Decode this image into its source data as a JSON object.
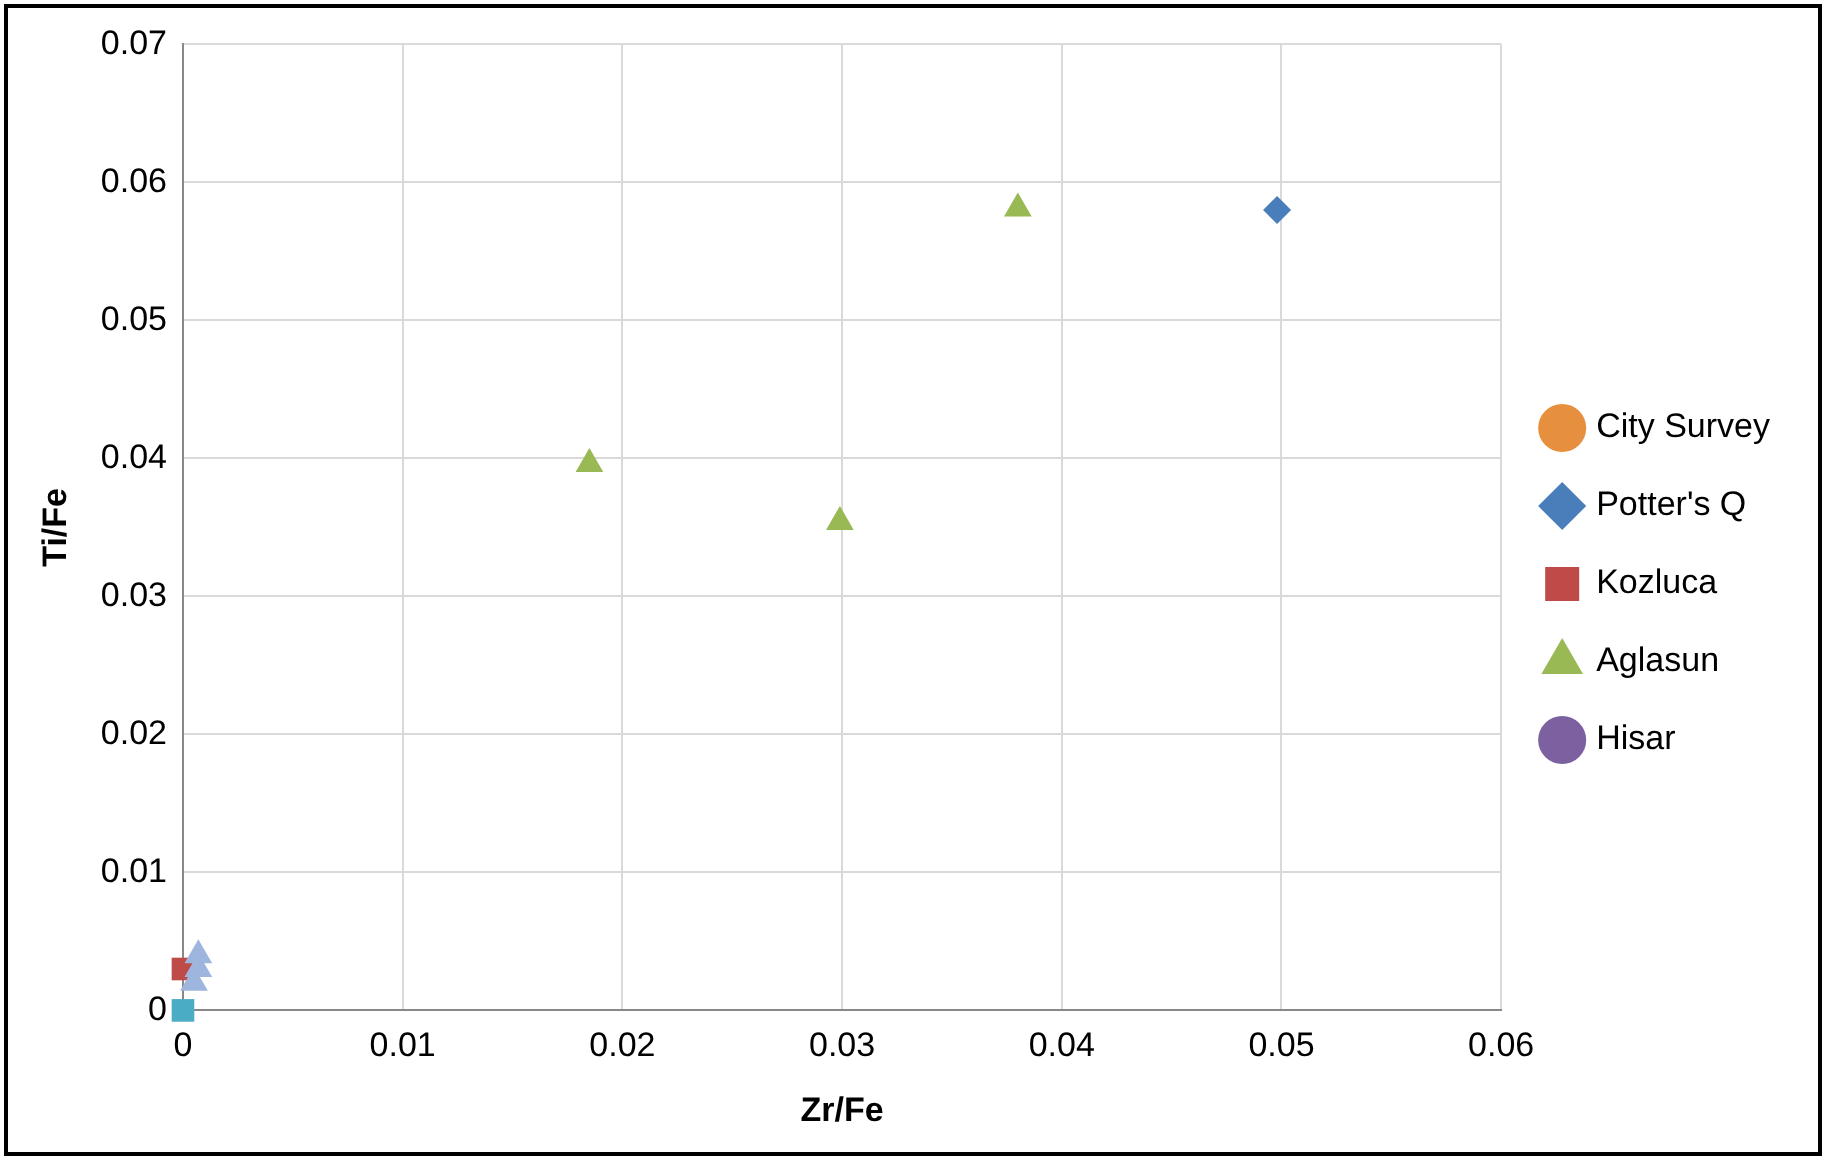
{
  "chart_data": {
    "type": "scatter",
    "xlabel": "Zr/Fe",
    "ylabel": "Ti/Fe",
    "xlim": [
      0,
      0.06
    ],
    "xticks": [
      0,
      0.01,
      0.02,
      0.03,
      0.04,
      0.05,
      0.06
    ],
    "ylim": [
      0,
      0.07
    ],
    "yticks": [
      0,
      0.01,
      0.02,
      0.03,
      0.04,
      0.05,
      0.06,
      0.07
    ],
    "grid": true,
    "legend": "right",
    "series": [
      {
        "name": "City Survey",
        "color": "#e6903f",
        "marker": "circle"
      },
      {
        "name": "Potter's Q",
        "color": "#4a7ebb",
        "marker": "diamond",
        "x": [
          0.0498
        ],
        "values": [
          0.058
        ]
      },
      {
        "name": "Kozluca",
        "color": "#be4b48",
        "marker": "square",
        "x": [
          0
        ],
        "values": [
          0.003
        ]
      },
      {
        "name": "Aglasun",
        "color": "#98b954",
        "marker": "triangle",
        "x": [
          0.038,
          0.0185,
          0.0299
        ],
        "values": [
          0.0581,
          0.0396,
          0.0354
        ]
      },
      {
        "name": "Hisar",
        "color": "#7d60a0",
        "marker": "circle"
      },
      {
        "color": "#4bacc6",
        "marker": "square",
        "x": [
          0
        ],
        "values": [
          0
        ]
      },
      {
        "color": "#9eb6dd",
        "marker": "triangle",
        "x": [
          0.0007,
          0.0007,
          0.0005
        ],
        "values": [
          0.004,
          0.003,
          0.002
        ]
      }
    ]
  }
}
